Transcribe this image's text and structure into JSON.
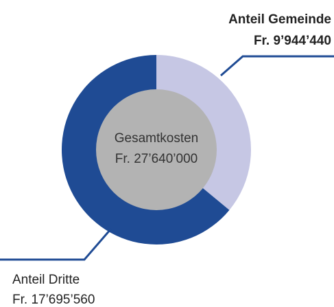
{
  "chart_data": {
    "type": "pie",
    "categories": [
      "Anteil Gemeinde",
      "Anteil Dritte"
    ],
    "values": [
      9944440,
      17695560
    ],
    "value_labels": [
      "Fr. 9’944’440",
      "Fr. 17’695’560"
    ],
    "colors": [
      "#c6c7e4",
      "#1f4b94"
    ],
    "center_label": "Gesamtkosten",
    "center_value_label": "Fr. 27’640’000"
  }
}
